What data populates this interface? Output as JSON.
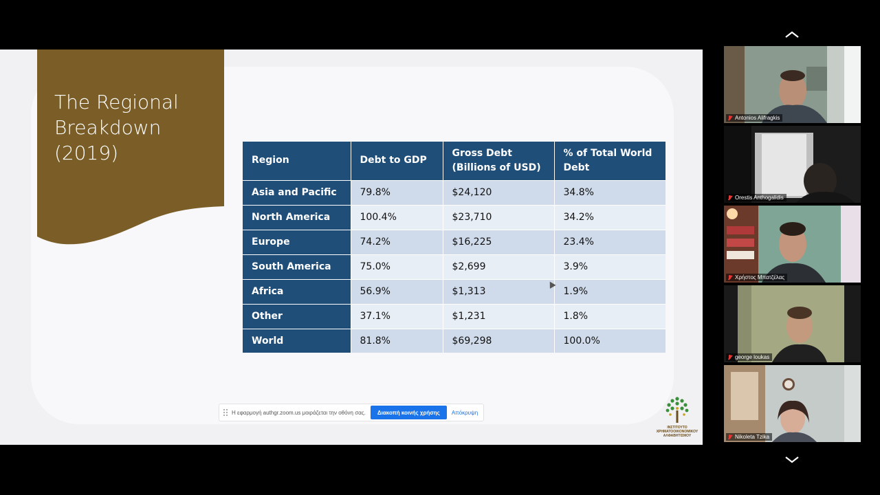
{
  "slide": {
    "title": "The Regional Breakdown (2019)",
    "title_bg_color": "#7a5d27",
    "table": {
      "headers": [
        "Region",
        "Debt to GDP",
        "Gross Debt (Billions of USD)",
        "% of Total World Debt"
      ],
      "rows": [
        {
          "region": "Asia and Pacific",
          "debt_to_gdp": "79.8%",
          "gross_debt": "$24,120",
          "pct_world": "34.8%"
        },
        {
          "region": "North America",
          "debt_to_gdp": "100.4%",
          "gross_debt": "$23,710",
          "pct_world": "34.2%"
        },
        {
          "region": "Europe",
          "debt_to_gdp": "74.2%",
          "gross_debt": "$16,225",
          "pct_world": "23.4%"
        },
        {
          "region": "South America",
          "debt_to_gdp": "75.0%",
          "gross_debt": "$2,699",
          "pct_world": "3.9%"
        },
        {
          "region": "Africa",
          "debt_to_gdp": "56.9%",
          "gross_debt": "$1,313",
          "pct_world": "1.9%"
        },
        {
          "region": "Other",
          "debt_to_gdp": "37.1%",
          "gross_debt": "$1,231",
          "pct_world": "1.8%"
        },
        {
          "region": "World",
          "debt_to_gdp": "81.8%",
          "gross_debt": "$69,298",
          "pct_world": "100.0%"
        }
      ]
    },
    "logo_text": "ΙΝΣΤΙΤΟΥΤΟ ΧΡΗΜΑΤΟΟΙΚΟΝΟΜΙΚΟΥ ΑΛΦΑΒΗΤΙΣΜΟΥ"
  },
  "share_bar": {
    "message": "Η εφαρμογή authgr.zoom.us μοιράζεται την οθόνη σας.",
    "stop_label": "Διακοπή κοινής χρήσης",
    "hide_label": "Απόκρυψη"
  },
  "participants": [
    {
      "name": "Antonios Alifragkis",
      "muted": true
    },
    {
      "name": "Orestis Anthogalidis",
      "muted": true
    },
    {
      "name": "Χρήστος Μπατζέλας",
      "muted": true
    },
    {
      "name": "george loukas",
      "muted": true
    },
    {
      "name": "Nikoleta Tzika",
      "muted": true
    }
  ],
  "icons": {
    "gallery_up": "chevron-up-icon",
    "gallery_down": "chevron-down-icon",
    "mic": "mic-muted-icon"
  },
  "colors": {
    "table_header": "#1f4e79",
    "stop_button": "#1a73e8"
  }
}
